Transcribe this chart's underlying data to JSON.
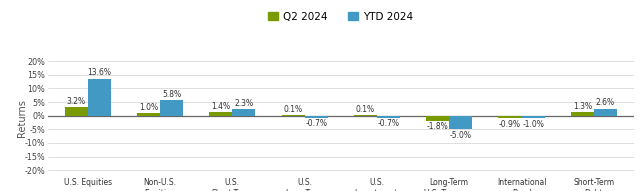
{
  "categories": [
    "U.S. Equities",
    "Non-U.S.\nEquities",
    "U.S.\nShort-Term\nInflation-\nProtected\nBond",
    "U.S.\nLong-Term\nInflation-\nProtected\nBond",
    "U.S.\nInvestment-\nGrade Bond",
    "Long-Term\nU.S. Treasury\nBond",
    "International\nBond",
    "Short-Term\nDebt"
  ],
  "q2_values": [
    3.2,
    1.0,
    1.4,
    0.1,
    0.1,
    -1.8,
    -0.9,
    1.3
  ],
  "ytd_values": [
    13.6,
    5.8,
    2.3,
    -0.7,
    -0.7,
    -5.0,
    -1.0,
    2.6
  ],
  "q2_color": "#7a9a01",
  "ytd_color": "#4299c4",
  "ylabel": "Returns",
  "ylim": [
    -22,
    20
  ],
  "yticks": [
    -20,
    -15,
    -10,
    -5,
    0,
    5,
    10,
    15,
    20
  ],
  "legend_q2": "Q2 2024",
  "legend_ytd": "YTD 2024",
  "background_color": "#ffffff",
  "bar_width": 0.32,
  "label_fontsize": 5.5,
  "tick_fontsize": 5.8,
  "ylabel_fontsize": 7.0,
  "legend_fontsize": 7.5,
  "cat_fontsize": 5.5
}
